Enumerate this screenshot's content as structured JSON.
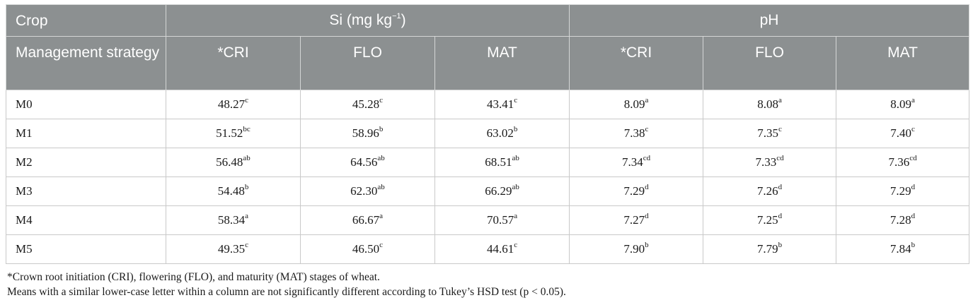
{
  "header": {
    "crop_label": "Crop",
    "management_label": "Management strategy",
    "si_group": "Si (mg kg",
    "si_exp": "−1",
    "si_close": ")",
    "ph_group": "pH",
    "stages": [
      "*CRI",
      "FLO",
      "MAT",
      "*CRI",
      "FLO",
      "MAT"
    ]
  },
  "rows": [
    {
      "label": "M0",
      "cells": [
        {
          "v": "48.27",
          "s": "c"
        },
        {
          "v": "45.28",
          "s": "c"
        },
        {
          "v": "43.41",
          "s": "c"
        },
        {
          "v": "8.09",
          "s": "a"
        },
        {
          "v": "8.08",
          "s": "a"
        },
        {
          "v": "8.09",
          "s": "a"
        }
      ]
    },
    {
      "label": "M1",
      "cells": [
        {
          "v": "51.52",
          "s": "bc"
        },
        {
          "v": "58.96",
          "s": "b"
        },
        {
          "v": "63.02",
          "s": "b"
        },
        {
          "v": "7.38",
          "s": "c"
        },
        {
          "v": "7.35",
          "s": "c"
        },
        {
          "v": "7.40",
          "s": "c"
        }
      ]
    },
    {
      "label": "M2",
      "cells": [
        {
          "v": "56.48",
          "s": "ab"
        },
        {
          "v": "64.56",
          "s": "ab"
        },
        {
          "v": "68.51",
          "s": "ab"
        },
        {
          "v": "7.34",
          "s": "cd"
        },
        {
          "v": "7.33",
          "s": "cd"
        },
        {
          "v": "7.36",
          "s": "cd"
        }
      ]
    },
    {
      "label": "M3",
      "cells": [
        {
          "v": "54.48",
          "s": "b"
        },
        {
          "v": "62.30",
          "s": "ab"
        },
        {
          "v": "66.29",
          "s": "ab"
        },
        {
          "v": "7.29",
          "s": "d"
        },
        {
          "v": "7.26",
          "s": "d"
        },
        {
          "v": "7.29",
          "s": "d"
        }
      ]
    },
    {
      "label": "M4",
      "cells": [
        {
          "v": "58.34",
          "s": "a"
        },
        {
          "v": "66.67",
          "s": "a"
        },
        {
          "v": "70.57",
          "s": "a"
        },
        {
          "v": "7.27",
          "s": "d"
        },
        {
          "v": "7.25",
          "s": "d"
        },
        {
          "v": "7.28",
          "s": "d"
        }
      ]
    },
    {
      "label": "M5",
      "cells": [
        {
          "v": "49.35",
          "s": "c"
        },
        {
          "v": "46.50",
          "s": "c"
        },
        {
          "v": "44.61",
          "s": "c"
        },
        {
          "v": "7.90",
          "s": "b"
        },
        {
          "v": "7.79",
          "s": "b"
        },
        {
          "v": "7.84",
          "s": "b"
        }
      ]
    }
  ],
  "footnotes": [
    "*Crown root initiation (CRI), flowering (FLO), and maturity (MAT) stages of wheat.",
    "Means with a similar lower-case letter within a column are not significantly different according to Tukey’s HSD test (p < 0.05)."
  ]
}
